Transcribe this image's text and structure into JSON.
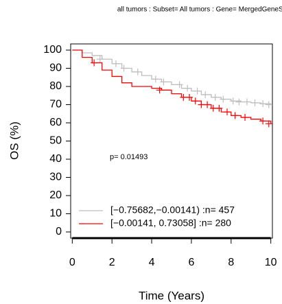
{
  "chart_data": {
    "type": "step",
    "title": "all tumors : Subset= All tumors : Gene= MergedGeneSet",
    "x_label": "Time (Years)",
    "y_label": "OS (%)",
    "annotation": "p= 0.01493",
    "xlim": [
      -0.08,
      10.08
    ],
    "ylim": [
      -3.4,
      103.4
    ],
    "xticks": [
      0,
      2,
      4,
      6,
      8,
      10
    ],
    "yticks": [
      0,
      10,
      20,
      30,
      40,
      50,
      60,
      70,
      80,
      90,
      100
    ],
    "legend": "bottom-left",
    "series": [
      {
        "name": "[−0.75682,−0.00141) :n= 457",
        "color": "#bebebe",
        "x": [
          0,
          0.5,
          1,
          1.5,
          2,
          2.5,
          3,
          3.5,
          4,
          4.5,
          5,
          5.5,
          6,
          6.5,
          7,
          7.5,
          8,
          8.5,
          9,
          9.5,
          10
        ],
        "values": [
          100,
          98.5,
          97,
          95,
          92.5,
          90,
          88,
          86,
          84,
          82.5,
          81,
          79,
          77.5,
          75.5,
          74,
          73,
          72,
          71.5,
          71,
          70.5,
          70
        ],
        "censor_x": [
          1.4,
          2.2,
          2.6,
          3.3,
          4.2,
          4.6,
          5.4,
          5.8,
          6.3,
          6.7,
          7.2,
          7.6,
          8.1,
          8.4,
          8.8,
          9.2,
          9.6,
          9.9
        ],
        "censor_y": [
          95,
          92.5,
          90,
          88,
          84,
          82.5,
          81,
          79,
          77.5,
          75.5,
          74,
          73,
          72,
          71.5,
          71.5,
          71,
          70.5,
          70
        ]
      },
      {
        "name": "[−0.00141, 0.73058] :n= 280",
        "color": "#ff0000",
        "x": [
          0,
          0.5,
          1,
          1.5,
          2,
          2.5,
          3,
          4,
          4.5,
          5,
          5.5,
          6,
          6.5,
          7,
          7.5,
          8,
          8.5,
          9,
          9.5,
          10
        ],
        "values": [
          100,
          96,
          93,
          89,
          85.5,
          82,
          80,
          79,
          78,
          76,
          74,
          72,
          70,
          68,
          66,
          64,
          63,
          62,
          61,
          59.5
        ],
        "censor_x": [
          1.1,
          4.4,
          5.6,
          5.9,
          6.2,
          6.5,
          6.8,
          7.1,
          7.4,
          7.8,
          8.2,
          8.7,
          9.6,
          9.9
        ],
        "censor_y": [
          93,
          78,
          74,
          74,
          72,
          70,
          70,
          68,
          68,
          66,
          64,
          63,
          61,
          59.5
        ]
      }
    ]
  }
}
